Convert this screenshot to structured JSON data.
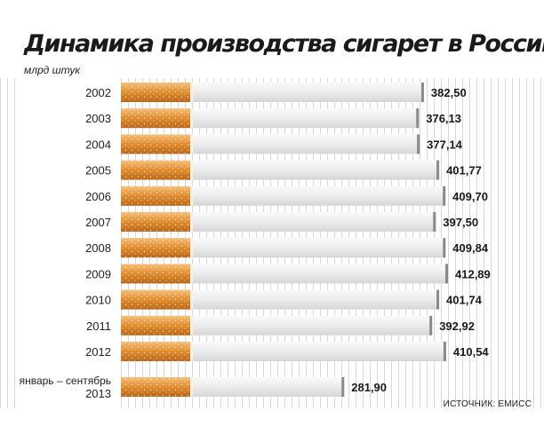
{
  "chart_data": {
    "type": "bar",
    "orientation": "horizontal",
    "title": "Динамика производства сигарет в России",
    "subtitle": "млрд штук",
    "categories": [
      "2002",
      "2003",
      "2004",
      "2005",
      "2006",
      "2007",
      "2008",
      "2009",
      "2010",
      "2011",
      "2012",
      "январь – сентябрь 2013"
    ],
    "category_lines": [
      [
        "2002"
      ],
      [
        "2003"
      ],
      [
        "2004"
      ],
      [
        "2005"
      ],
      [
        "2006"
      ],
      [
        "2007"
      ],
      [
        "2008"
      ],
      [
        "2009"
      ],
      [
        "2010"
      ],
      [
        "2011"
      ],
      [
        "2012"
      ],
      [
        "январь – сентябрь",
        "2013"
      ]
    ],
    "values": [
      382.5,
      376.13,
      377.14,
      401.77,
      409.7,
      397.5,
      409.84,
      412.89,
      401.74,
      392.92,
      410.54,
      281.9
    ],
    "value_labels": [
      "382,50",
      "376,13",
      "377,14",
      "401,77",
      "409,70",
      "397,50",
      "409,84",
      "412,89",
      "401,74",
      "392,92",
      "410,54",
      "281,90"
    ],
    "xlim": [
      0,
      420
    ],
    "grid": true,
    "colors": {
      "filter": "#e08c2e",
      "filter_light": "#f3b969",
      "paper": "#f1f1f1",
      "end_mark": "#8a8a8a"
    }
  },
  "source": "ИСТОЧНИК: ЕМИСС"
}
